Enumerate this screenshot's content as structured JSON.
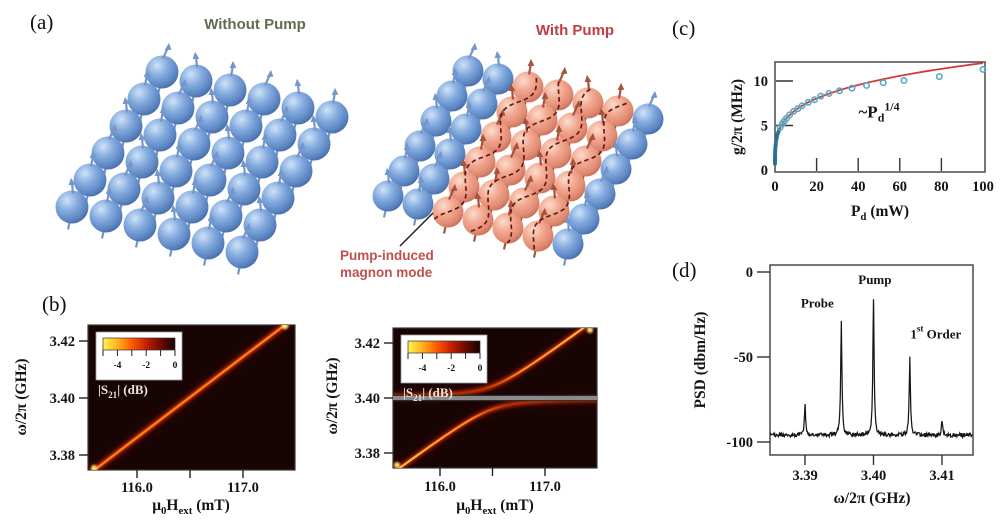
{
  "panels": {
    "a": {
      "label": "(a)",
      "without_pump_title": "Without Pump",
      "with_pump_title": "With Pump",
      "magnon_mode_annotation": "Pump-induced magnon mode",
      "colors": {
        "without_title": "#5d6e4c",
        "with_title": "#c63b43",
        "annotation": "#c0504d",
        "sphere_blue": "#85acdf",
        "sphere_pink": "#f2a88f",
        "dashed_mode_line": "#5f1410"
      }
    },
    "b": {
      "label": "(b)"
    },
    "c": {
      "label": "(c)"
    },
    "d": {
      "label": "(d)"
    }
  },
  "chart_data": [
    {
      "id": "b_left",
      "type": "heatmap",
      "description": "Transmission |S21| map without pump: single magnon-photon resonance line",
      "xlabel_parts": [
        {
          "t": "μ"
        },
        {
          "t": "0",
          "sub": true
        },
        {
          "t": "H"
        },
        {
          "t": "ext",
          "sub": true
        },
        {
          "t": " (mT)"
        }
      ],
      "ylabel": "ω/2π (GHz)",
      "xlim": [
        115.54,
        117.49
      ],
      "ylim": [
        3.3747,
        3.4256
      ],
      "x_ticks": [
        116.0,
        116.5,
        117.0
      ],
      "x_tick_labels": [
        "116.0",
        "",
        "117.0"
      ],
      "y_ticks": [
        3.38,
        3.4,
        3.42
      ],
      "y_tick_labels": [
        "3.38",
        "3.40",
        "3.42"
      ],
      "resonance_line": {
        "H_ref": 116.49,
        "f_ref_GHz": 3.4,
        "slope_GHz_per_mT": 0.0283
      },
      "colorbar": {
        "range": [
          -5,
          0
        ],
        "tick_values": [
          -4,
          -2,
          0
        ],
        "tick_labels": [
          "-4",
          "-2",
          "0"
        ],
        "label_parts": [
          {
            "t": "|S"
          },
          {
            "t": "21",
            "sub": true
          },
          {
            "t": "| (dB)"
          }
        ],
        "gradient": [
          "#fff24f",
          "#ffb31f",
          "#ff5a00",
          "#c81e00",
          "#6e0a00",
          "#140202"
        ]
      },
      "background": "#190404"
    },
    {
      "id": "b_right",
      "type": "heatmap",
      "description": "Transmission |S21| map with pump: anticrossing with pump-induced magnon mode at 3.400 GHz",
      "xlabel_parts": [
        {
          "t": "μ"
        },
        {
          "t": "0",
          "sub": true
        },
        {
          "t": "H"
        },
        {
          "t": "ext",
          "sub": true
        },
        {
          "t": " (mT)"
        }
      ],
      "ylabel": "ω/2π (GHz)",
      "xlim": [
        115.55,
        117.5
      ],
      "ylim": [
        3.3746,
        3.4255
      ],
      "x_ticks": [
        116.0,
        116.5,
        117.0
      ],
      "x_tick_labels": [
        "116.0",
        "",
        "117.0"
      ],
      "y_ticks": [
        3.38,
        3.4,
        3.42
      ],
      "y_tick_labels": [
        "3.38",
        "3.40",
        "3.42"
      ],
      "resonance_line": {
        "H_ref": 116.49,
        "f_ref_GHz": 3.4,
        "slope_GHz_per_mT": 0.0283
      },
      "pump_mode_GHz": 3.4,
      "coupling_g_GHz": 0.0042,
      "colorbar": {
        "range": [
          -5,
          0
        ],
        "tick_values": [
          -4,
          -2,
          0
        ],
        "tick_labels": [
          "-4",
          "-2",
          "0"
        ],
        "label_parts": [
          {
            "t": "|S"
          },
          {
            "t": "21",
            "sub": true
          },
          {
            "t": "| (dB)"
          }
        ],
        "gradient": [
          "#fff24f",
          "#ffb31f",
          "#ff5a00",
          "#c81e00",
          "#6e0a00",
          "#140202"
        ]
      },
      "background": "#190404"
    },
    {
      "id": "c",
      "type": "scatter",
      "description": "Coupling strength vs drive power with P^(1/4) fit",
      "xlabel_parts": [
        {
          "t": "P"
        },
        {
          "t": "d",
          "sub": true
        },
        {
          "t": " (mW)"
        }
      ],
      "ylabel": "g/2π (MHz)",
      "xlim": [
        0,
        101
      ],
      "ylim": [
        0,
        12.1
      ],
      "x_ticks": [
        20,
        40,
        60,
        80
      ],
      "x_tick_values": [
        0,
        20,
        40,
        60,
        80,
        100
      ],
      "x_tick_labels": [
        "0",
        "20",
        "40",
        "60",
        "80",
        "100"
      ],
      "y_ticks": [
        0,
        5,
        10
      ],
      "y_tick_labels": [
        "0",
        "5",
        "10"
      ],
      "fit": {
        "form": "g = a * P^0.25",
        "a": 3.8,
        "color": "#d43a3a"
      },
      "annotation_parts": [
        {
          "t": "~P"
        },
        {
          "t": "d",
          "sub": true
        },
        {
          "t": "1/4",
          "sup": true
        }
      ],
      "annotation_pos": {
        "P": 50,
        "g": 5.9
      },
      "dense_points": [
        [
          0.001,
          0.7
        ],
        [
          0.003,
          0.9
        ],
        [
          0.006,
          1.05
        ],
        [
          0.01,
          1.2
        ],
        [
          0.02,
          1.4
        ],
        [
          0.03,
          1.55
        ],
        [
          0.05,
          1.8
        ],
        [
          0.08,
          2.0
        ],
        [
          0.12,
          2.2
        ],
        [
          0.18,
          2.45
        ],
        [
          0.25,
          2.7
        ],
        [
          0.35,
          2.9
        ],
        [
          0.5,
          3.2
        ],
        [
          0.7,
          3.5
        ],
        [
          0.9,
          3.7
        ],
        [
          1.2,
          4.0
        ],
        [
          1.6,
          4.25
        ],
        [
          2.0,
          4.5
        ]
      ],
      "points": [
        [
          2.5,
          4.8
        ],
        [
          3.5,
          5.2
        ],
        [
          4.5,
          5.5
        ],
        [
          5.5,
          5.8
        ],
        [
          7,
          6.2
        ],
        [
          9,
          6.6
        ],
        [
          11,
          6.9
        ],
        [
          13,
          7.2
        ],
        [
          16,
          7.6
        ],
        [
          19,
          7.9
        ],
        [
          22,
          8.3
        ],
        [
          26,
          8.6
        ],
        [
          31,
          8.9
        ],
        [
          37,
          9.2
        ],
        [
          44,
          9.5
        ],
        [
          52,
          9.8
        ],
        [
          62,
          10.05
        ],
        [
          79,
          10.5
        ],
        [
          100,
          11.3
        ]
      ],
      "marker_color": "#56aac6",
      "dense_color": "#2e6d94"
    },
    {
      "id": "d",
      "type": "line-spectrum",
      "description": "Power spectral density showing probe, pump and first-order sideband peaks",
      "xlabel": "ω/2π  (GHz)",
      "ylabel": "PSD (dbm/Hz)",
      "xlim": [
        3.3849,
        3.4145
      ],
      "ylim": [
        0,
        -107
      ],
      "x_ticks": [
        3.39,
        3.4,
        3.41
      ],
      "x_tick_labels": [
        "3.39",
        "3.40",
        "3.41"
      ],
      "y_ticks": [
        0,
        -50,
        -100
      ],
      "y_tick_labels": [
        "0",
        "-50",
        "-100"
      ],
      "baseline_dbm": -96,
      "noise_amp": 1.2,
      "peaks": [
        {
          "f_GHz": 3.39,
          "psd": -78
        },
        {
          "f_GHz": 3.3953,
          "psd": -29,
          "name": "Probe"
        },
        {
          "f_GHz": 3.4,
          "psd": -17,
          "name": "Pump"
        },
        {
          "f_GHz": 3.4053,
          "psd": -52,
          "name": "1st Order"
        },
        {
          "f_GHz": 3.41,
          "psd": -88
        }
      ],
      "peak_labels": [
        {
          "parts": [
            {
              "t": "Probe"
            }
          ],
          "color": "#2a9d8f",
          "f": 3.3918,
          "v": -21
        },
        {
          "parts": [
            {
              "t": "Pump"
            }
          ],
          "color": "#c03246",
          "f": 3.4002,
          "v": -7
        },
        {
          "parts": [
            {
              "t": "1"
            },
            {
              "t": "st",
              "sup": true
            },
            {
              "t": " Order"
            }
          ],
          "color": "#b4a63e",
          "f": 3.4091,
          "v": -39
        }
      ],
      "trace_color": "#161616"
    }
  ]
}
